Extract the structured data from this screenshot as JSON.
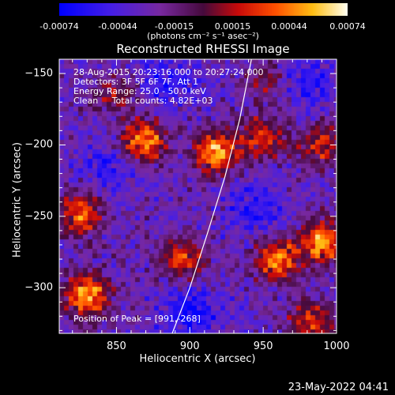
{
  "chart_data": {
    "type": "heatmap",
    "title": "Reconstructed RHESSI Image",
    "xlabel": "Heliocentric X (arcsec)",
    "ylabel": "Heliocentric Y (arcsec)",
    "xlim": [
      811,
      1000
    ],
    "ylim": [
      -332,
      -140
    ],
    "xticks": [
      "850",
      "900",
      "950",
      "1000"
    ],
    "yticks": [
      "-150",
      "-200",
      "-250",
      "-300"
    ],
    "colorbar": {
      "min": -0.00074,
      "max": 0.00074,
      "tick_labels": [
        "-0.00074",
        "-0.00044",
        "-0.00015",
        "0.00015",
        "0.00044",
        "0.00074"
      ],
      "units": "(photons cm⁻² s⁻¹ asec⁻²)"
    },
    "limb_curve": [
      [
        888,
        -332
      ],
      [
        900,
        -300
      ],
      [
        912,
        -262
      ],
      [
        924,
        -222
      ],
      [
        934,
        -182
      ],
      [
        942,
        -140
      ]
    ],
    "hot_spots": [
      {
        "x": 868,
        "y": -197,
        "level": 1.0
      },
      {
        "x": 918,
        "y": -205,
        "level": 1.0
      },
      {
        "x": 826,
        "y": -248,
        "level": 0.8
      },
      {
        "x": 830,
        "y": -305,
        "level": 1.0
      },
      {
        "x": 895,
        "y": -280,
        "level": 0.75
      },
      {
        "x": 960,
        "y": -280,
        "level": 0.9
      },
      {
        "x": 991,
        "y": -268,
        "level": 1.0
      },
      {
        "x": 983,
        "y": -325,
        "level": 0.7
      },
      {
        "x": 950,
        "y": -195,
        "level": 0.7
      },
      {
        "x": 990,
        "y": -200,
        "level": 0.6
      },
      {
        "x": 848,
        "y": -165,
        "level": 0.4
      },
      {
        "x": 955,
        "y": -155,
        "level": 0.5
      }
    ],
    "cold_spots": [
      {
        "x": 900,
        "y": -318,
        "level": 1.0
      },
      {
        "x": 885,
        "y": -155,
        "level": 0.8
      },
      {
        "x": 975,
        "y": -155,
        "level": 0.8
      },
      {
        "x": 945,
        "y": -245,
        "level": 0.7
      },
      {
        "x": 845,
        "y": -215,
        "level": 0.7
      }
    ]
  },
  "info_lines": [
    "28-Aug-2015 20:23:16.000 to 20:27:24.000",
    "Detectors: 3F 5F 6F 7F, Att 1",
    "Energy Range: 25.0 - 50.0 keV",
    "Clean     Total counts: 4.82E+03"
  ],
  "peak_text": "Position of Peak = [991,-268]",
  "timestamp": "23-May-2022 04:41",
  "colors": {
    "background": "#000000",
    "text": "#ffffff",
    "limb_line": "#ffffff"
  }
}
